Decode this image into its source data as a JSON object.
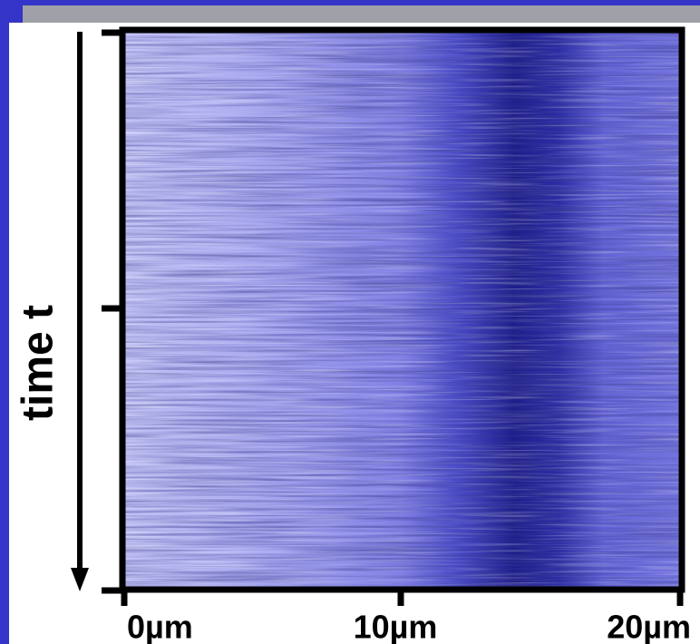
{
  "image": {
    "y_label": "time t",
    "x_labels": [
      "0µm",
      "10µm",
      "20µm"
    ]
  }
}
